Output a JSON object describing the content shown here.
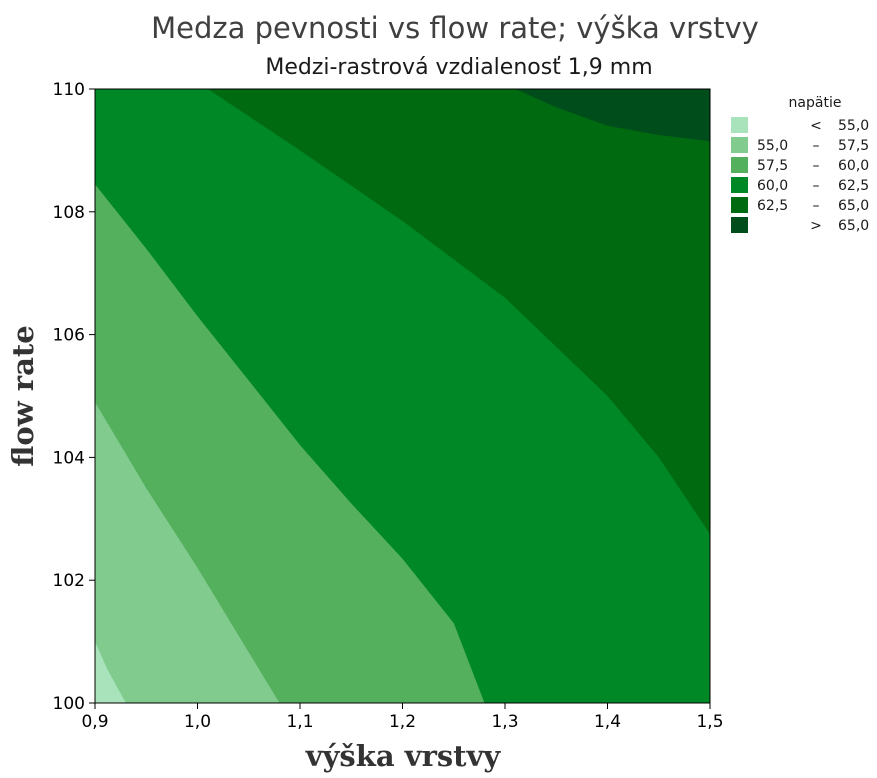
{
  "chart_data": {
    "type": "contour",
    "title": "Medza pevnosti vs flow rate; výška vrstvy",
    "subtitle": "Medzi-rastrová vzdialenosť 1,9 mm",
    "xlabel": "výška vrstvy",
    "ylabel": "flow rate",
    "xlim": [
      0.9,
      1.5
    ],
    "ylim": [
      100,
      110
    ],
    "x_ticks": [
      "0,9",
      "1,0",
      "1,1",
      "1,2",
      "1,3",
      "1,4",
      "1,5"
    ],
    "y_ticks": [
      "100",
      "102",
      "104",
      "106",
      "108",
      "110"
    ],
    "z_name": "napätie",
    "levels": [
      {
        "low_label": "",
        "op": "<",
        "high_label": "55,0",
        "color": "#a8e3bc"
      },
      {
        "low_label": "55,0",
        "op": "–",
        "high_label": "57,5",
        "color": "#80cb8d"
      },
      {
        "low_label": "57,5",
        "op": "–",
        "high_label": "60,0",
        "color": "#54b05d"
      },
      {
        "low_label": "60,0",
        "op": "–",
        "high_label": "62,5",
        "color": "#008827"
      },
      {
        "low_label": "62,5",
        "op": "–",
        "high_label": "65,0",
        "color": "#006a10"
      },
      {
        "low_label": "",
        "op": ">",
        "high_label": "65,0",
        "color": "#004d1c"
      }
    ],
    "boundaries": [
      {
        "between": "<55,0 | 55,0–57,5",
        "points": [
          [
            0.9,
            101.0
          ],
          [
            0.912,
            100.55
          ],
          [
            0.93,
            100.0
          ]
        ]
      },
      {
        "between": "55,0–57,5 | 57,5–60,0",
        "points": [
          [
            0.9,
            104.9
          ],
          [
            0.95,
            103.5
          ],
          [
            1.0,
            102.2
          ],
          [
            1.04,
            101.1
          ],
          [
            1.08,
            100.0
          ]
        ]
      },
      {
        "between": "57,5–60,0 | 60,0–62,5",
        "points": [
          [
            0.9,
            108.45
          ],
          [
            0.95,
            107.4
          ],
          [
            1.0,
            106.3
          ],
          [
            1.05,
            105.25
          ],
          [
            1.1,
            104.2
          ],
          [
            1.15,
            103.25
          ],
          [
            1.2,
            102.35
          ],
          [
            1.25,
            101.3
          ],
          [
            1.28,
            100.0
          ]
        ]
      },
      {
        "between": "60,0–62,5 | 62,5–65,0",
        "points": [
          [
            1.01,
            110.0
          ],
          [
            1.1,
            109.0
          ],
          [
            1.2,
            107.85
          ],
          [
            1.3,
            106.6
          ],
          [
            1.4,
            105.0
          ],
          [
            1.45,
            104.0
          ],
          [
            1.5,
            102.75
          ]
        ]
      },
      {
        "between": "62,5–65,0 | >65,0",
        "points": [
          [
            1.31,
            110.0
          ],
          [
            1.35,
            109.7
          ],
          [
            1.4,
            109.4
          ],
          [
            1.45,
            109.25
          ],
          [
            1.5,
            109.15
          ]
        ]
      }
    ]
  }
}
